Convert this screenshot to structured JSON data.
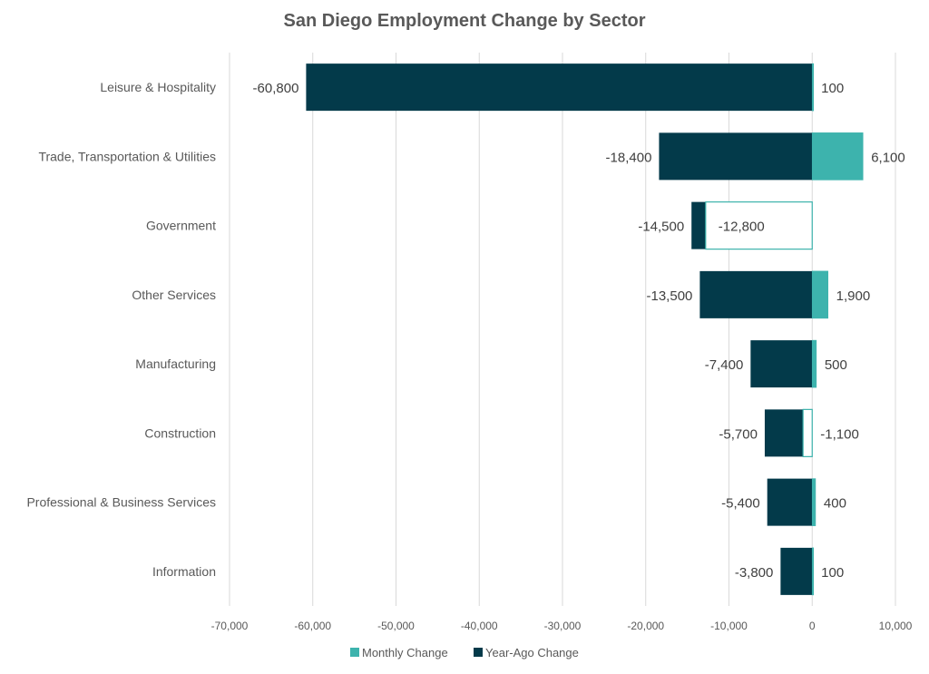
{
  "chart_data": {
    "type": "bar",
    "orientation": "horizontal",
    "title": "San Diego Employment Change by Sector",
    "xlabel": "",
    "ylabel": "",
    "xlim": [
      -70000,
      10000
    ],
    "xticks": [
      -70000,
      -60000,
      -50000,
      -40000,
      -30000,
      -20000,
      -10000,
      0,
      10000
    ],
    "xtick_labels": [
      "-70,000",
      "-60,000",
      "-50,000",
      "-40,000",
      "-30,000",
      "-20,000",
      "-10,000",
      "0",
      "10,000"
    ],
    "grid": true,
    "legend_position": "bottom-center",
    "categories": [
      "Leisure & Hospitality",
      "Trade, Transportation & Utilities",
      "Government",
      "Other Services",
      "Manufacturing",
      "Construction",
      "Professional & Business Services",
      "Information"
    ],
    "series": [
      {
        "name": "Monthly Change",
        "color": "#3db3ad",
        "negative_fill": "#ffffff",
        "values": [
          100,
          6100,
          -12800,
          1900,
          500,
          -1100,
          400,
          100
        ],
        "labels": [
          "100",
          "6,100",
          "-12,800",
          "1,900",
          "500",
          "-1,100",
          "400",
          "100"
        ]
      },
      {
        "name": "Year-Ago Change",
        "color": "#033a4a",
        "values": [
          -60800,
          -18400,
          -14500,
          -13500,
          -7400,
          -5700,
          -5400,
          -3800
        ],
        "labels": [
          "-60,800",
          "-18,400",
          "-14,500",
          "-13,500",
          "-7,400",
          "-5,700",
          "-5,400",
          "-3,800"
        ]
      }
    ]
  }
}
